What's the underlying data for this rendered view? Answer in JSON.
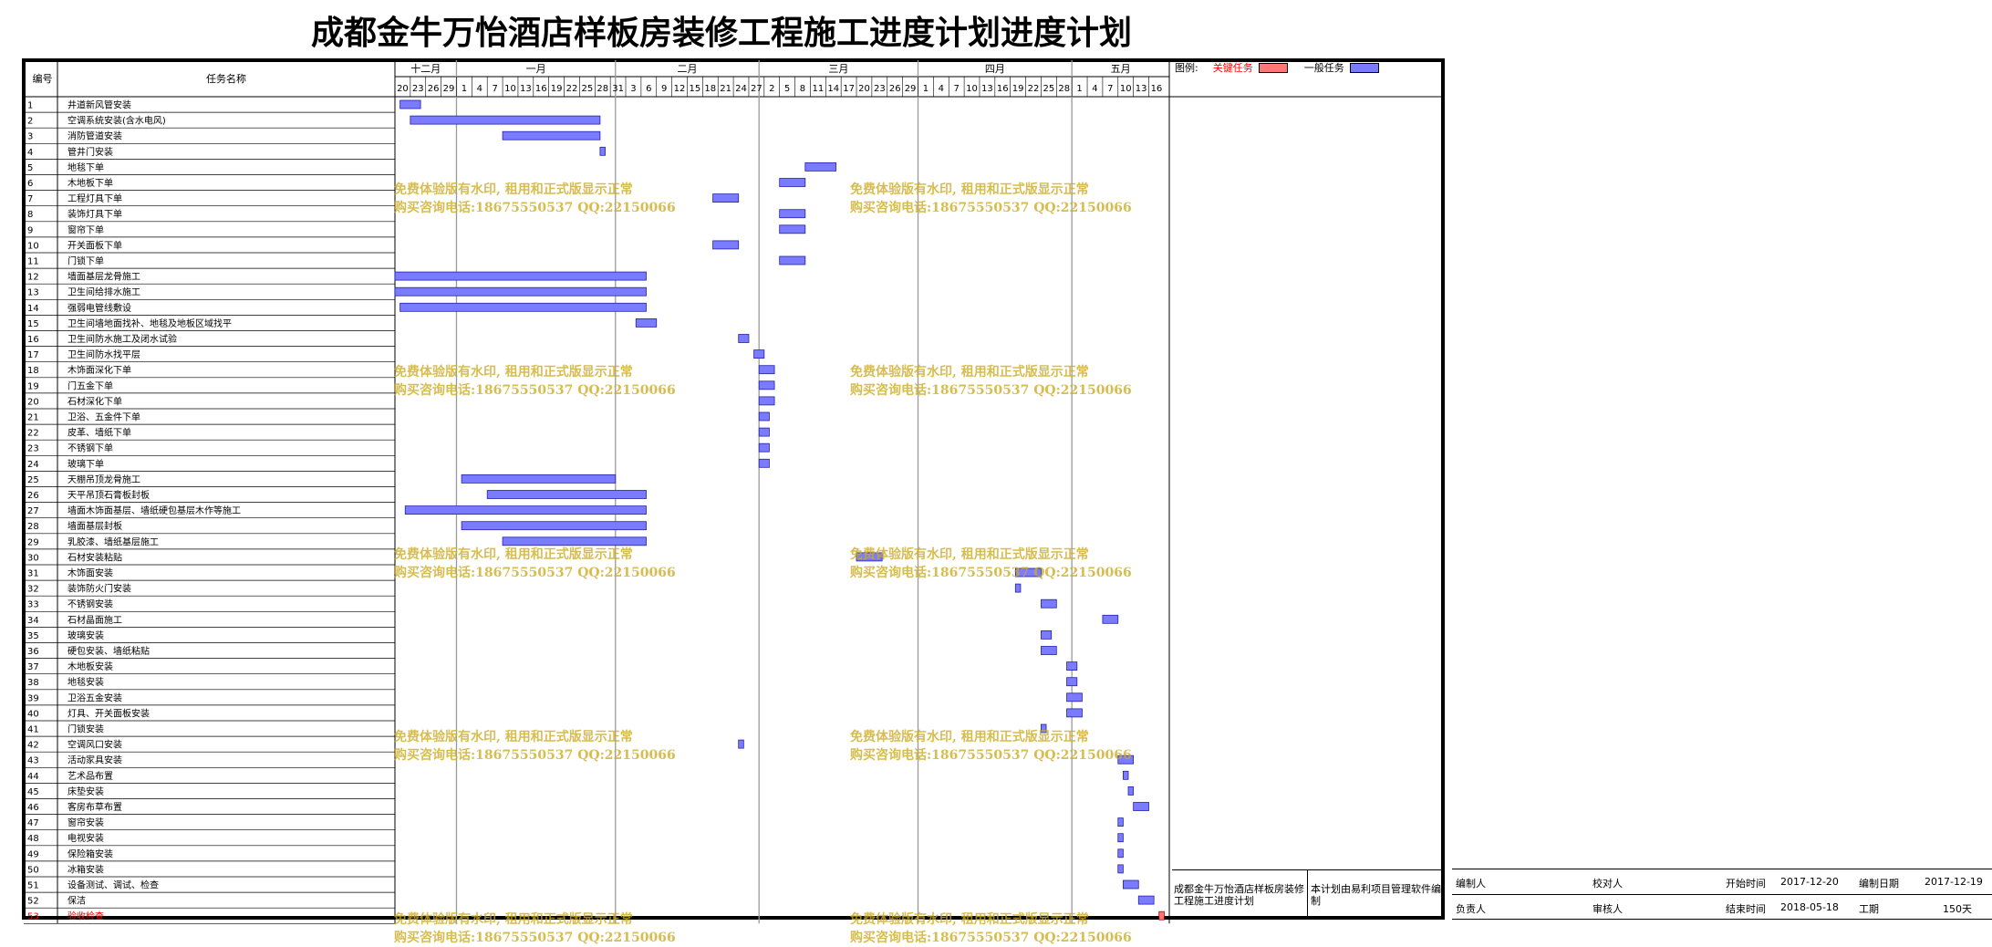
{
  "title": "成都金牛万怡酒店样板房装修工程施工进度计划进度计划",
  "colors": {
    "key": "#ff7777",
    "normal": "#7b7bff",
    "bar_stroke": "#2222aa",
    "key_text": "#ff0000",
    "watermark": "#cbaa24"
  },
  "header": {
    "no": "编号",
    "name": "任务名称"
  },
  "legend": {
    "label": "图例:",
    "key": "关键任务",
    "normal": "一般任务"
  },
  "chart_data": {
    "type": "gantt",
    "timeline": {
      "start": "2017-12-20",
      "end": "2018-05-19",
      "months": [
        {
          "label": "十二月",
          "start": "2017-12-20",
          "end": "2017-12-31"
        },
        {
          "label": "一月",
          "start": "2018-01-01",
          "end": "2018-01-31"
        },
        {
          "label": "二月",
          "start": "2018-02-01",
          "end": "2018-02-28"
        },
        {
          "label": "三月",
          "start": "2018-03-01",
          "end": "2018-03-31"
        },
        {
          "label": "四月",
          "start": "2018-04-01",
          "end": "2018-04-30"
        },
        {
          "label": "五月",
          "start": "2018-05-01",
          "end": "2018-05-19"
        }
      ],
      "ticks": [
        {
          "label": "20",
          "date": "2017-12-20"
        },
        {
          "label": "23",
          "date": "2017-12-23"
        },
        {
          "label": "26",
          "date": "2017-12-26"
        },
        {
          "label": "29",
          "date": "2017-12-29"
        },
        {
          "label": "1",
          "date": "2018-01-01"
        },
        {
          "label": "4",
          "date": "2018-01-04"
        },
        {
          "label": "7",
          "date": "2018-01-07"
        },
        {
          "label": "10",
          "date": "2018-01-10"
        },
        {
          "label": "13",
          "date": "2018-01-13"
        },
        {
          "label": "16",
          "date": "2018-01-16"
        },
        {
          "label": "19",
          "date": "2018-01-19"
        },
        {
          "label": "22",
          "date": "2018-01-22"
        },
        {
          "label": "25",
          "date": "2018-01-25"
        },
        {
          "label": "28",
          "date": "2018-01-28"
        },
        {
          "label": "31",
          "date": "2018-01-31"
        },
        {
          "label": "3",
          "date": "2018-02-03"
        },
        {
          "label": "6",
          "date": "2018-02-06"
        },
        {
          "label": "9",
          "date": "2018-02-09"
        },
        {
          "label": "12",
          "date": "2018-02-12"
        },
        {
          "label": "15",
          "date": "2018-02-15"
        },
        {
          "label": "18",
          "date": "2018-02-18"
        },
        {
          "label": "21",
          "date": "2018-02-21"
        },
        {
          "label": "24",
          "date": "2018-02-24"
        },
        {
          "label": "27",
          "date": "2018-02-27"
        },
        {
          "label": "2",
          "date": "2018-03-02"
        },
        {
          "label": "5",
          "date": "2018-03-05"
        },
        {
          "label": "8",
          "date": "2018-03-08"
        },
        {
          "label": "11",
          "date": "2018-03-11"
        },
        {
          "label": "14",
          "date": "2018-03-14"
        },
        {
          "label": "17",
          "date": "2018-03-17"
        },
        {
          "label": "20",
          "date": "2018-03-20"
        },
        {
          "label": "23",
          "date": "2018-03-23"
        },
        {
          "label": "26",
          "date": "2018-03-26"
        },
        {
          "label": "29",
          "date": "2018-03-29"
        },
        {
          "label": "1",
          "date": "2018-04-01"
        },
        {
          "label": "4",
          "date": "2018-04-04"
        },
        {
          "label": "7",
          "date": "2018-04-07"
        },
        {
          "label": "10",
          "date": "2018-04-10"
        },
        {
          "label": "13",
          "date": "2018-04-13"
        },
        {
          "label": "16",
          "date": "2018-04-16"
        },
        {
          "label": "19",
          "date": "2018-04-19"
        },
        {
          "label": "22",
          "date": "2018-04-22"
        },
        {
          "label": "25",
          "date": "2018-04-25"
        },
        {
          "label": "28",
          "date": "2018-04-28"
        },
        {
          "label": "1",
          "date": "2018-05-01"
        },
        {
          "label": "4",
          "date": "2018-05-04"
        },
        {
          "label": "7",
          "date": "2018-05-07"
        },
        {
          "label": "10",
          "date": "2018-05-10"
        },
        {
          "label": "13",
          "date": "2018-05-13"
        },
        {
          "label": "16",
          "date": "2018-05-16"
        }
      ]
    },
    "tasks": [
      {
        "id": "1",
        "name": "井道新风管安装",
        "start": "2017-12-21",
        "end": "2017-12-24"
      },
      {
        "id": "2",
        "name": "空调系统安装(含水电风)",
        "start": "2017-12-23",
        "end": "2018-01-28"
      },
      {
        "id": "3",
        "name": "消防管道安装",
        "start": "2018-01-10",
        "end": "2018-01-28"
      },
      {
        "id": "4",
        "name": "管井门安装",
        "start": "2018-01-29",
        "end": "2018-01-29"
      },
      {
        "id": "5",
        "name": "地毯下单",
        "start": "2018-03-10",
        "end": "2018-03-15"
      },
      {
        "id": "6",
        "name": "木地板下单",
        "start": "2018-03-05",
        "end": "2018-03-09"
      },
      {
        "id": "7",
        "name": "工程灯具下单",
        "start": "2018-02-20",
        "end": "2018-02-24"
      },
      {
        "id": "8",
        "name": "装饰灯具下单",
        "start": "2018-03-05",
        "end": "2018-03-09"
      },
      {
        "id": "9",
        "name": "窗帘下单",
        "start": "2018-03-05",
        "end": "2018-03-09"
      },
      {
        "id": "10",
        "name": "开关面板下单",
        "start": "2018-02-20",
        "end": "2018-02-24"
      },
      {
        "id": "11",
        "name": "门锁下单",
        "start": "2018-03-05",
        "end": "2018-03-09"
      },
      {
        "id": "12",
        "name": "墙面基层龙骨施工",
        "start": "2017-12-20",
        "end": "2018-02-06"
      },
      {
        "id": "13",
        "name": "卫生间给排水施工",
        "start": "2017-12-20",
        "end": "2018-02-06"
      },
      {
        "id": "14",
        "name": "强弱电管线敷设",
        "start": "2017-12-21",
        "end": "2018-02-06"
      },
      {
        "id": "15",
        "name": "卫生间墙地面找补、地毯及地板区域找平",
        "start": "2018-02-05",
        "end": "2018-02-08"
      },
      {
        "id": "16",
        "name": "卫生间防水施工及闭水试验",
        "start": "2018-02-25",
        "end": "2018-02-26"
      },
      {
        "id": "17",
        "name": "卫生间防水找平层",
        "start": "2018-02-28",
        "end": "2018-03-01"
      },
      {
        "id": "18",
        "name": "木饰面深化下单",
        "start": "2018-03-01",
        "end": "2018-03-03"
      },
      {
        "id": "19",
        "name": "门五金下单",
        "start": "2018-03-01",
        "end": "2018-03-03"
      },
      {
        "id": "20",
        "name": "石材深化下单",
        "start": "2018-03-01",
        "end": "2018-03-03"
      },
      {
        "id": "21",
        "name": "卫浴、五金件下单",
        "start": "2018-03-01",
        "end": "2018-03-02"
      },
      {
        "id": "22",
        "name": "皮革、墙纸下单",
        "start": "2018-03-01",
        "end": "2018-03-02"
      },
      {
        "id": "23",
        "name": "不锈钢下单",
        "start": "2018-03-01",
        "end": "2018-03-02"
      },
      {
        "id": "24",
        "name": "玻璃下单",
        "start": "2018-03-01",
        "end": "2018-03-02"
      },
      {
        "id": "25",
        "name": "天棚吊顶龙骨施工",
        "start": "2018-01-02",
        "end": "2018-01-31"
      },
      {
        "id": "26",
        "name": "天平吊顶石膏板封板",
        "start": "2018-01-07",
        "end": "2018-02-06"
      },
      {
        "id": "27",
        "name": "墙面木饰面基层、墙纸硬包基层木作等施工",
        "start": "2017-12-22",
        "end": "2018-02-06"
      },
      {
        "id": "28",
        "name": "墙面基层封板",
        "start": "2018-01-02",
        "end": "2018-02-06"
      },
      {
        "id": "29",
        "name": "乳胶漆、墙纸基层施工",
        "start": "2018-01-10",
        "end": "2018-02-06"
      },
      {
        "id": "30",
        "name": "石材安装粘贴",
        "start": "2018-03-20",
        "end": "2018-03-24"
      },
      {
        "id": "31",
        "name": "木饰面安装",
        "start": "2018-04-20",
        "end": "2018-04-24"
      },
      {
        "id": "32",
        "name": "装饰防火门安装",
        "start": "2018-04-20",
        "end": "2018-04-20"
      },
      {
        "id": "33",
        "name": "不锈钢安装",
        "start": "2018-04-25",
        "end": "2018-04-27"
      },
      {
        "id": "34",
        "name": "石材晶面施工",
        "start": "2018-05-07",
        "end": "2018-05-09"
      },
      {
        "id": "35",
        "name": "玻璃安装",
        "start": "2018-04-25",
        "end": "2018-04-26"
      },
      {
        "id": "36",
        "name": "硬包安装、墙纸粘贴",
        "start": "2018-04-25",
        "end": "2018-04-27"
      },
      {
        "id": "37",
        "name": "木地板安装",
        "start": "2018-04-30",
        "end": "2018-05-01"
      },
      {
        "id": "38",
        "name": "地毯安装",
        "start": "2018-04-30",
        "end": "2018-05-01"
      },
      {
        "id": "39",
        "name": "卫浴五金安装",
        "start": "2018-04-30",
        "end": "2018-05-02"
      },
      {
        "id": "40",
        "name": "灯具、开关面板安装",
        "start": "2018-04-30",
        "end": "2018-05-02"
      },
      {
        "id": "41",
        "name": "门锁安装",
        "start": "2018-04-25",
        "end": "2018-04-25"
      },
      {
        "id": "42",
        "name": "空调风口安装",
        "start": "2018-02-25",
        "end": "2018-02-25"
      },
      {
        "id": "43",
        "name": "活动家具安装",
        "start": "2018-05-10",
        "end": "2018-05-12"
      },
      {
        "id": "44",
        "name": "艺术品布置",
        "start": "2018-05-11",
        "end": "2018-05-11"
      },
      {
        "id": "45",
        "name": "床垫安装",
        "start": "2018-05-12",
        "end": "2018-05-12"
      },
      {
        "id": "46",
        "name": "客房布草布置",
        "start": "2018-05-13",
        "end": "2018-05-15"
      },
      {
        "id": "47",
        "name": "窗帘安装",
        "start": "2018-05-10",
        "end": "2018-05-10"
      },
      {
        "id": "48",
        "name": "电视安装",
        "start": "2018-05-10",
        "end": "2018-05-10"
      },
      {
        "id": "49",
        "name": "保险箱安装",
        "start": "2018-05-10",
        "end": "2018-05-10"
      },
      {
        "id": "50",
        "name": "冰箱安装",
        "start": "2018-05-10",
        "end": "2018-05-10"
      },
      {
        "id": "51",
        "name": "设备测试、调试、检查",
        "start": "2018-05-11",
        "end": "2018-05-13"
      },
      {
        "id": "52",
        "name": "保洁",
        "start": "2018-05-14",
        "end": "2018-05-16"
      },
      {
        "id": "53",
        "name": "验收检查",
        "start": "2018-05-18",
        "end": "2018-05-18",
        "critical": true
      }
    ]
  },
  "watermark": {
    "line1": "免费体验版有水印, 租用和正式版显示正常",
    "line2": "购买咨询电话:18675550537 QQ:22150066"
  },
  "note": {
    "left": "成都金牛万怡酒店样板房装修工程施工进度计划",
    "right": "本计划由易利项目管理软件编制"
  },
  "info": {
    "editor_label": "编制人",
    "editor": "",
    "checker_label": "校对人",
    "checker": "",
    "start_label": "开始时间",
    "start": "2017-12-20",
    "date_label": "编制日期",
    "date": "2017-12-19",
    "owner_label": "负责人",
    "owner": "",
    "reviewer_label": "审核人",
    "reviewer": "",
    "end_label": "结束时间",
    "end": "2018-05-18",
    "duration_label": "工期",
    "duration": "150天"
  }
}
